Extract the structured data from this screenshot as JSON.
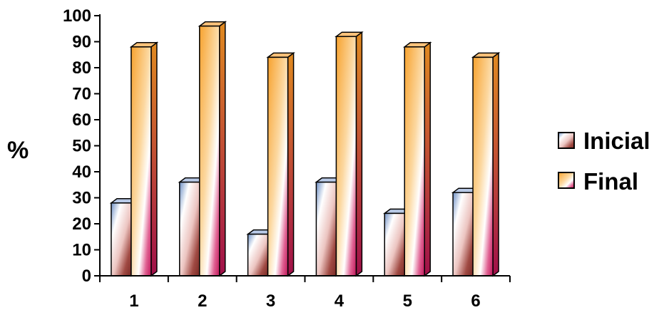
{
  "chart_data": {
    "type": "bar",
    "categories": [
      "1",
      "2",
      "3",
      "4",
      "5",
      "6"
    ],
    "series": [
      {
        "name": "Inicial",
        "values": [
          28,
          36,
          16,
          36,
          24,
          32
        ]
      },
      {
        "name": "Final",
        "values": [
          88,
          96,
          84,
          92,
          88,
          84
        ]
      }
    ],
    "title": "",
    "xlabel": "",
    "ylabel": "%",
    "ylim": [
      0,
      100
    ],
    "yticks": [
      "0",
      "10",
      "20",
      "30",
      "40",
      "50",
      "60",
      "70",
      "80",
      "90",
      "100"
    ],
    "grid": false,
    "legend": "right",
    "style": "3d-gradient"
  }
}
